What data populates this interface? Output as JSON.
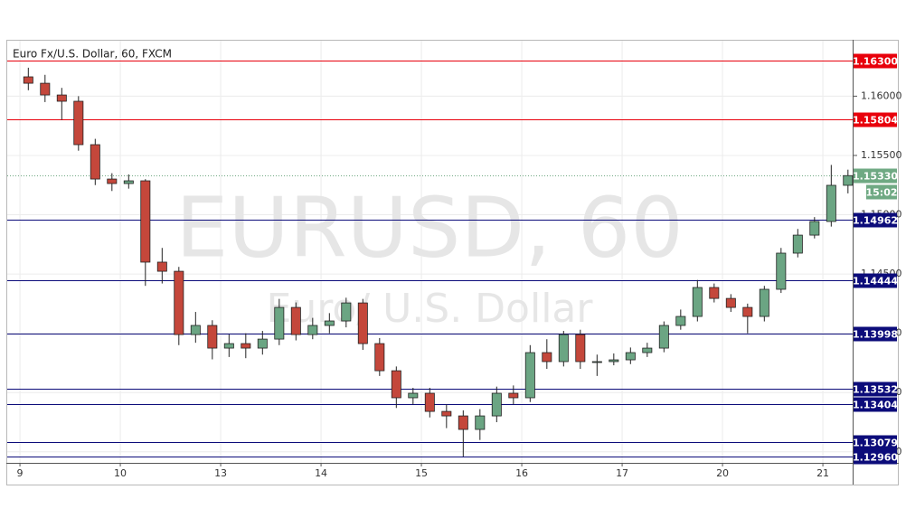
{
  "chart_data": {
    "type": "candlestick",
    "title": "Euro Fx/U.S. Dollar, 60, FXCM",
    "watermark": "EURUSD, 60",
    "watermark_subtitle": "Euro/ U.S. Dollar",
    "up_color": "#6ba583",
    "down_color": "#c4473b",
    "open": [
      1.16163,
      1.16109,
      1.1601,
      1.15957,
      1.15591,
      1.15301,
      1.15263,
      1.15286,
      1.146,
      1.14523,
      1.13989,
      1.14066,
      1.13875,
      1.13913,
      1.13875,
      1.13951,
      1.14218,
      1.13989,
      1.14066,
      1.14104,
      1.14256,
      1.13913,
      1.13684,
      1.13456,
      1.13494,
      1.13341,
      1.13303,
      1.13189,
      1.13303,
      1.13494,
      1.13456,
      1.13837,
      1.13761,
      1.13989,
      1.13761,
      1.13761,
      1.13776,
      1.13837,
      1.13875,
      1.14066,
      1.14142,
      1.14386,
      1.14294,
      1.14218,
      1.14142,
      1.14371,
      1.14676,
      1.14828,
      1.14943,
      1.15248
    ],
    "high": [
      1.1624,
      1.1618,
      1.1607,
      1.16,
      1.1564,
      1.1535,
      1.1534,
      1.153,
      1.1472,
      1.1456,
      1.1418,
      1.1411,
      1.1399,
      1.14,
      1.1402,
      1.1429,
      1.1426,
      1.1413,
      1.1417,
      1.143,
      1.1429,
      1.1396,
      1.1372,
      1.1354,
      1.1354,
      1.134,
      1.1335,
      1.1336,
      1.1355,
      1.1356,
      1.139,
      1.1395,
      1.1402,
      1.1403,
      1.1382,
      1.1383,
      1.1388,
      1.1392,
      1.141,
      1.142,
      1.1445,
      1.1442,
      1.1433,
      1.1425,
      1.144,
      1.1472,
      1.1488,
      1.1498,
      1.1542,
      1.1538
    ],
    "low": [
      1.1605,
      1.1595,
      1.158,
      1.1554,
      1.1525,
      1.152,
      1.1522,
      1.144,
      1.1442,
      1.139,
      1.1392,
      1.1378,
      1.138,
      1.1379,
      1.1382,
      1.139,
      1.1394,
      1.1395,
      1.14,
      1.1405,
      1.1386,
      1.1364,
      1.1337,
      1.134,
      1.1329,
      1.132,
      1.1296,
      1.131,
      1.1325,
      1.134,
      1.1342,
      1.137,
      1.1372,
      1.137,
      1.1364,
      1.1373,
      1.1374,
      1.138,
      1.1384,
      1.1403,
      1.141,
      1.1426,
      1.1418,
      1.14,
      1.141,
      1.1434,
      1.1464,
      1.148,
      1.149,
      1.1518
    ],
    "close": [
      1.16109,
      1.1601,
      1.15957,
      1.15591,
      1.15301,
      1.15263,
      1.15286,
      1.146,
      1.14523,
      1.13989,
      1.14066,
      1.13875,
      1.13913,
      1.13875,
      1.13951,
      1.14218,
      1.13989,
      1.14066,
      1.14104,
      1.14256,
      1.13913,
      1.13684,
      1.13456,
      1.13494,
      1.13341,
      1.13303,
      1.13189,
      1.13303,
      1.13494,
      1.13456,
      1.13837,
      1.13761,
      1.13989,
      1.13761,
      1.13761,
      1.13776,
      1.13837,
      1.13875,
      1.14066,
      1.14142,
      1.14386,
      1.14294,
      1.14218,
      1.14142,
      1.14371,
      1.14676,
      1.14828,
      1.14943,
      1.15248,
      1.1533
    ],
    "xlim": [
      -0.76,
      49.78
    ],
    "xticks": [
      {
        "value": 0,
        "label": "9"
      },
      {
        "value": 6,
        "label": "10"
      },
      {
        "value": 12,
        "label": "13"
      },
      {
        "value": 18,
        "label": "14"
      },
      {
        "value": 24,
        "label": "15"
      },
      {
        "value": 30,
        "label": "16"
      },
      {
        "value": 36,
        "label": "17"
      },
      {
        "value": 42,
        "label": "20"
      },
      {
        "value": 48,
        "label": "21"
      }
    ],
    "ylim": [
      1.12907,
      1.16468
    ],
    "yticks": [
      {
        "value": 1.13,
        "label": "1.13000"
      },
      {
        "value": 1.135,
        "label": "1.13500"
      },
      {
        "value": 1.14,
        "label": "1.14000"
      },
      {
        "value": 1.145,
        "label": "1.14500"
      },
      {
        "value": 1.15,
        "label": "1.15000"
      },
      {
        "value": 1.155,
        "label": "1.15500"
      },
      {
        "value": 1.16,
        "label": "1.16000"
      }
    ],
    "grid": true,
    "levels": [
      {
        "value": 1.163,
        "label": "1.16300",
        "color": "#e8000b"
      },
      {
        "value": 1.15804,
        "label": "1.15804",
        "color": "#e8000b"
      },
      {
        "value": 1.14962,
        "label": "1.14962",
        "color": "#0c0c7a"
      },
      {
        "value": 1.14444,
        "label": "1.14444",
        "color": "#0c0c7a"
      },
      {
        "value": 1.13998,
        "label": "1.13998",
        "color": "#0c0c7a"
      },
      {
        "value": 1.13532,
        "label": "1.13532",
        "color": "#0c0c7a"
      },
      {
        "value": 1.13404,
        "label": "1.13404",
        "color": "#0c0c7a"
      },
      {
        "value": 1.13079,
        "label": "1.13079",
        "color": "#0c0c7a"
      },
      {
        "value": 1.1296,
        "label": "1.12960",
        "color": "#0c0c7a"
      }
    ],
    "last_price": {
      "value": 1.1533,
      "label": "1.15330",
      "countdown": "15:02",
      "color": "#6fa983"
    }
  }
}
